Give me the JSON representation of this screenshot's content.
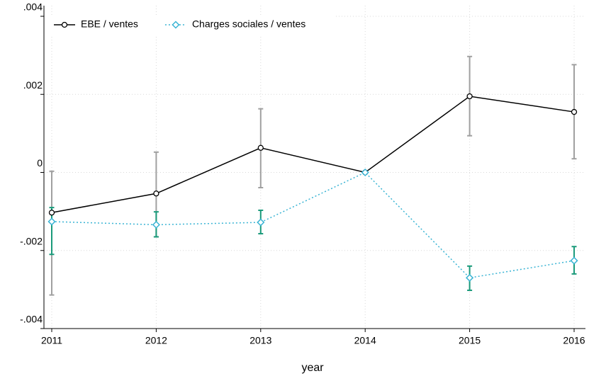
{
  "chart_data": {
    "type": "line",
    "x_label": "year",
    "x": [
      2011,
      2012,
      2013,
      2014,
      2015,
      2016
    ],
    "xlim": [
      2011,
      2016
    ],
    "xticks": [
      2011,
      2012,
      2013,
      2014,
      2015,
      2016
    ],
    "ylim": [
      -0.004,
      0.004
    ],
    "yticks": [
      {
        "value": -0.004,
        "label": "-.004"
      },
      {
        "value": -0.002,
        "label": "-.002"
      },
      0,
      {
        "value": 0.002,
        "label": ".002"
      },
      {
        "value": 0.004,
        "label": ".004"
      }
    ],
    "grid": true,
    "legend": "top-left",
    "series": [
      {
        "name": "EBE / ventes",
        "color": "#000000",
        "error_color": "#a0a0a0",
        "marker": "circle",
        "dash": "solid",
        "values": [
          -0.00103,
          -0.00054,
          0.00063,
          0,
          0.00195,
          0.00155
        ],
        "ci_low": [
          -0.00314,
          -0.00165,
          -0.00039,
          0,
          0.00094,
          0.00035
        ],
        "ci_high": [
          3e-05,
          0.00052,
          0.00163,
          0,
          0.00297,
          0.00276
        ]
      },
      {
        "name": "Charges sociales / ventes",
        "color": "#3ab4d4",
        "error_color": "#1a9a7a",
        "marker": "diamond",
        "dash": "dotted",
        "values": [
          -0.00126,
          -0.00134,
          -0.00128,
          0,
          -0.0027,
          -0.00226
        ],
        "ci_low": [
          -0.0021,
          -0.00165,
          -0.00157,
          0,
          -0.00302,
          -0.0026
        ],
        "ci_high": [
          -0.0009,
          -0.00101,
          -0.00097,
          0,
          -0.0024,
          -0.0019
        ]
      }
    ]
  }
}
